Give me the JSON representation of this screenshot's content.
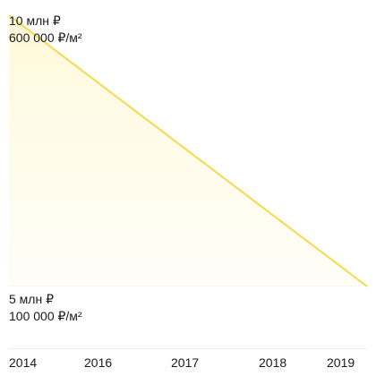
{
  "chart_data": {
    "type": "area",
    "title": "",
    "xlabel": "",
    "ylabel": "",
    "x_ticks": [
      "2014",
      "2016",
      "2017",
      "2018",
      "2019"
    ],
    "y_axis_labels": {
      "top": {
        "price": "10 млн ₽",
        "price_per_m2": "600 000 ₽/м²"
      },
      "bottom": {
        "price": "5 млн ₽",
        "price_per_m2": "100 000 ₽/м²"
      }
    },
    "series": [
      {
        "x": [
          "2014",
          "2019"
        ],
        "values": [
          10,
          5
        ],
        "color": "#f5d94a",
        "fill": "#fffbe3"
      }
    ],
    "ylim": [
      5,
      10
    ],
    "grid": true,
    "legend": "none"
  }
}
